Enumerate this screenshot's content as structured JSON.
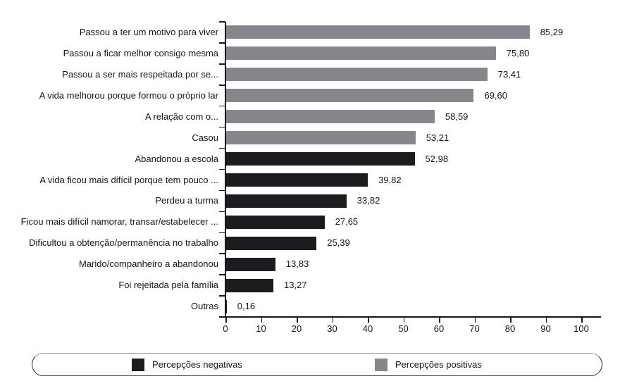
{
  "chart_data": {
    "type": "bar",
    "orientation": "horizontal",
    "categories": [
      "Passou a ter um motivo para viver",
      "Passou a ficar melhor consigo mesma",
      "Passou a ser mais respeitada por se...",
      "A vida melhorou porque formou o próprio lar",
      "A relação com o...",
      "Casou",
      "Abandonou a escola",
      "A vida ficou mais difícil porque tem pouco ...",
      "Perdeu a turma",
      "Ficou mais difícil namorar, transar/estabelecer ...",
      "Dificultou a obtenção/permanência no trabalho",
      "Marido/companheiro a abandonou",
      "Foi rejeitada pela família",
      "Outras"
    ],
    "values": [
      85.29,
      75.8,
      73.41,
      69.6,
      58.59,
      53.21,
      52.98,
      39.82,
      33.82,
      27.65,
      25.39,
      13.83,
      13.27,
      0.16
    ],
    "value_labels": [
      "85,29",
      "75,80",
      "73,41",
      "69,60",
      "58,59",
      "53,21",
      "52,98",
      "39,82",
      "33,82",
      "27,65",
      "25,39",
      "13,83",
      "13,27",
      "0,16"
    ],
    "groups": [
      "positive",
      "positive",
      "positive",
      "positive",
      "positive",
      "positive",
      "negative",
      "negative",
      "negative",
      "negative",
      "negative",
      "negative",
      "negative",
      "negative"
    ],
    "xlim": [
      0,
      100
    ],
    "x_ticks": [
      "0",
      "10",
      "20",
      "30",
      "40",
      "50",
      "60",
      "70",
      "80",
      "90",
      "100"
    ],
    "grid": false,
    "legend_position": "bottom",
    "legend": [
      {
        "key": "negative",
        "label": "Percepções negativas",
        "color": "#1c1b1f"
      },
      {
        "key": "positive",
        "label": "Percepções positivas",
        "color": "#85878d"
      }
    ],
    "colors": {
      "negative": "#1c1b1f",
      "positive": "#85878d",
      "axis": "#161616",
      "text": "#161616"
    }
  }
}
